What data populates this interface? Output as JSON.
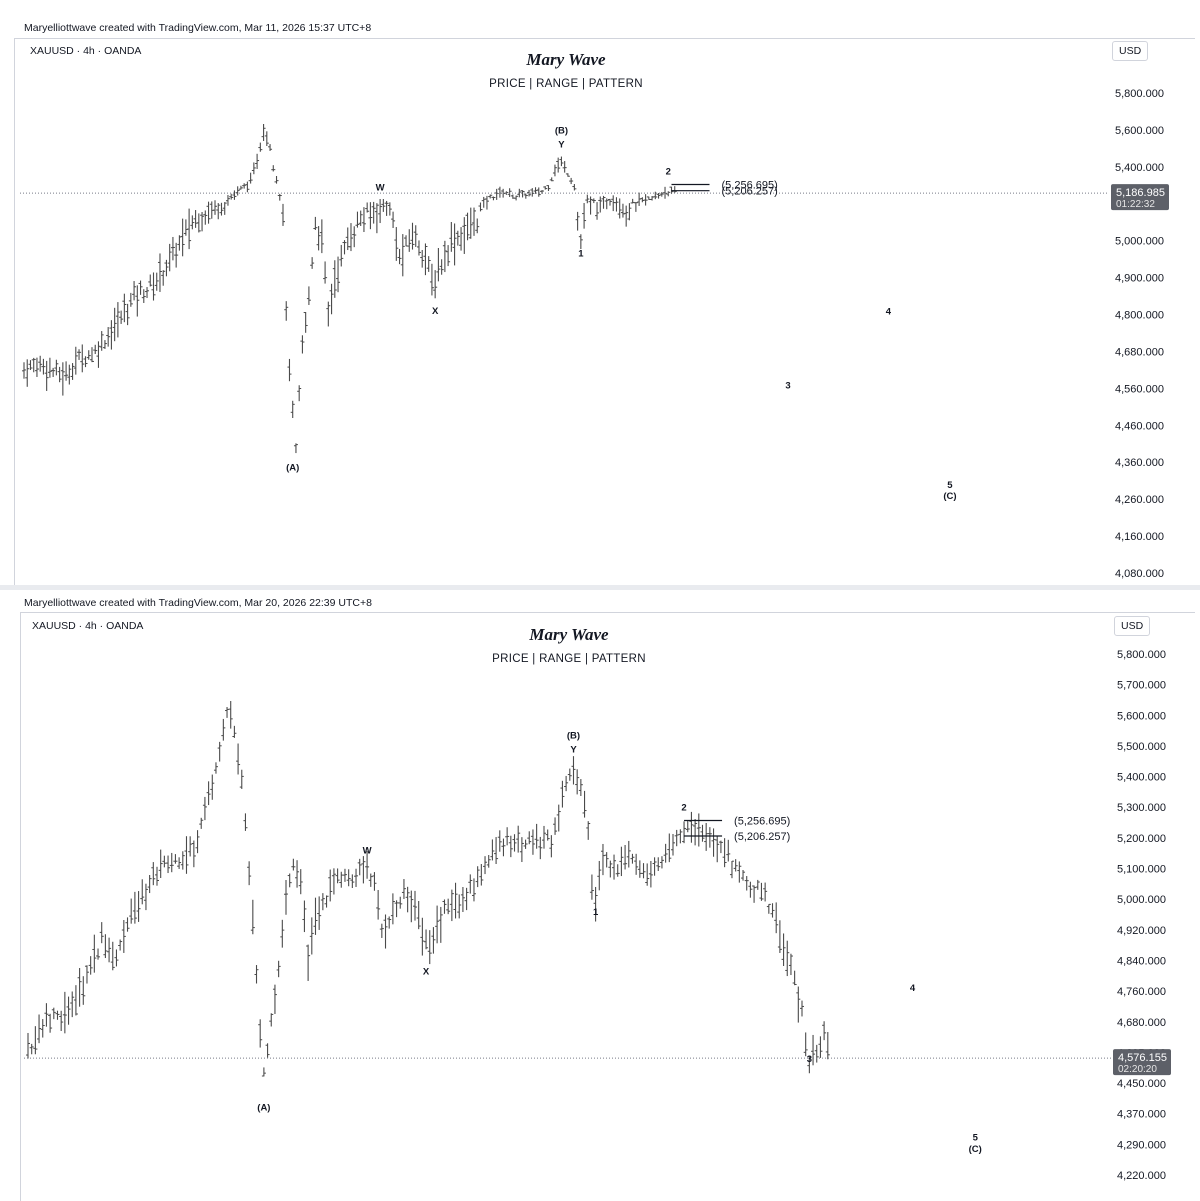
{
  "chart_data": [
    {
      "type": "ohlc",
      "attribution": "Maryelliottwave created with TradingView.com, Mar 11, 2026 15:37 UTC+8",
      "symbol": "XAUUSD · 4h · OANDA",
      "title": "Mary Wave",
      "subtitle": "PRICE  |  RANGE  |  PATTERN",
      "currency": "USD",
      "y_axis_ticks": [
        "5,800.000",
        "5,600.000",
        "5,400.000",
        "5,100.000",
        "5,000.000",
        "4,900.000",
        "4,800.000",
        "4,680.000",
        "4,560.000",
        "4,460.000",
        "4,360.000",
        "4,260.000",
        "4,160.000",
        "4,080.000"
      ],
      "y_tick_values": [
        5800,
        5600,
        5400,
        5100,
        5000,
        4900,
        4800,
        4680,
        4560,
        4460,
        4360,
        4260,
        4160,
        4080
      ],
      "ylim": [
        4060,
        5860
      ],
      "current_price": {
        "value": 5186.985,
        "label": "5,186.985",
        "countdown": "01:22:32"
      },
      "levels": [
        {
          "value": 5256.695,
          "label": "(5,256.695)"
        },
        {
          "value": 5206.257,
          "label": "(5,206.257)"
        }
      ],
      "price_path": [
        [
          0,
          4620
        ],
        [
          5,
          4640
        ],
        [
          10,
          4610
        ],
        [
          13,
          4600
        ],
        [
          16,
          4650
        ],
        [
          22,
          4680
        ],
        [
          28,
          4760
        ],
        [
          34,
          4850
        ],
        [
          40,
          4880
        ],
        [
          46,
          4960
        ],
        [
          52,
          5050
        ],
        [
          58,
          5090
        ],
        [
          62,
          5110
        ],
        [
          66,
          5200
        ],
        [
          70,
          5280
        ],
        [
          74,
          5600
        ],
        [
          76,
          5520
        ],
        [
          78,
          5300
        ],
        [
          80,
          5050
        ],
        [
          82,
          4600
        ],
        [
          84,
          4380
        ],
        [
          86,
          4700
        ],
        [
          88,
          4850
        ],
        [
          90,
          5050
        ],
        [
          92,
          5000
        ],
        [
          94,
          4800
        ],
        [
          96,
          4900
        ],
        [
          100,
          5000
        ],
        [
          104,
          5060
        ],
        [
          108,
          5080
        ],
        [
          112,
          5110
        ],
        [
          114,
          5050
        ],
        [
          116,
          4950
        ],
        [
          118,
          4980
        ],
        [
          120,
          5020
        ],
        [
          124,
          4960
        ],
        [
          126,
          4880
        ],
        [
          128,
          4920
        ],
        [
          132,
          5000
        ],
        [
          136,
          5020
        ],
        [
          140,
          5060
        ],
        [
          144,
          5150
        ],
        [
          148,
          5200
        ],
        [
          152,
          5160
        ],
        [
          156,
          5180
        ],
        [
          160,
          5200
        ],
        [
          162,
          5250
        ],
        [
          164,
          5380
        ],
        [
          166,
          5420
        ],
        [
          168,
          5350
        ],
        [
          170,
          5250
        ],
        [
          171,
          5050
        ],
        [
          172,
          5000
        ],
        [
          174,
          5120
        ],
        [
          178,
          5100
        ],
        [
          182,
          5150
        ],
        [
          186,
          5080
        ],
        [
          190,
          5120
        ],
        [
          194,
          5140
        ],
        [
          198,
          5200
        ],
        [
          202,
          5187
        ]
      ],
      "x_max": 320,
      "wave_labels": [
        {
          "text": "(A)",
          "x": 83,
          "y": 4370,
          "dy": 12
        },
        {
          "text": "W",
          "x": 110,
          "y": 5110,
          "dy": -12
        },
        {
          "text": "X",
          "x": 127,
          "y": 4840,
          "dy": 14
        },
        {
          "text": "(B)",
          "x": 166,
          "y": 5440,
          "dy": -26
        },
        {
          "text": "Y",
          "x": 166,
          "y": 5440,
          "dy": -12
        },
        {
          "text": "1",
          "x": 172,
          "y": 4990,
          "dy": 12
        },
        {
          "text": "2",
          "x": 199,
          "y": 5256,
          "dy": -10
        },
        {
          "text": "3",
          "x": 236,
          "y": 4560,
          "dy": 0
        },
        {
          "text": "4",
          "x": 267,
          "y": 4800,
          "dy": 0
        },
        {
          "text": "5",
          "x": 286,
          "y": 4290,
          "dy": 0
        },
        {
          "text": "(C)",
          "x": 286,
          "y": 4260,
          "dy": 0
        }
      ]
    },
    {
      "type": "ohlc",
      "attribution": "Maryelliottwave created with TradingView.com, Mar 20, 2026 22:39 UTC+8",
      "symbol": "XAUUSD · 4h · OANDA",
      "title": "Mary Wave",
      "subtitle": "PRICE  |  RANGE  |  PATTERN",
      "currency": "USD",
      "y_axis_ticks": [
        "5,800.000",
        "5,700.000",
        "5,600.000",
        "5,500.000",
        "5,400.000",
        "5,300.000",
        "5,200.000",
        "5,100.000",
        "5,000.000",
        "4,920.000",
        "4,840.000",
        "4,760.000",
        "4,680.000",
        "4,605.000",
        "4,450.000",
        "4,370.000",
        "4,290.000",
        "4,220.000"
      ],
      "y_tick_values": [
        5800,
        5700,
        5600,
        5500,
        5400,
        5300,
        5200,
        5100,
        5000,
        4920,
        4840,
        4760,
        4680,
        4605,
        4450,
        4370,
        4290,
        4220
      ],
      "ylim": [
        4190,
        5860
      ],
      "current_price": {
        "value": 4576.155,
        "label": "4,576.155",
        "countdown": "02:20:20"
      },
      "levels": [
        {
          "value": 5256.695,
          "label": "(5,256.695)"
        },
        {
          "value": 5206.257,
          "label": "(5,206.257)"
        }
      ],
      "price_path": [
        [
          0,
          4600
        ],
        [
          4,
          4680
        ],
        [
          8,
          4690
        ],
        [
          12,
          4720
        ],
        [
          16,
          4800
        ],
        [
          20,
          4900
        ],
        [
          24,
          4850
        ],
        [
          28,
          4950
        ],
        [
          32,
          5020
        ],
        [
          36,
          5100
        ],
        [
          40,
          5120
        ],
        [
          44,
          5150
        ],
        [
          46,
          5200
        ],
        [
          50,
          5380
        ],
        [
          54,
          5600
        ],
        [
          56,
          5560
        ],
        [
          58,
          5400
        ],
        [
          60,
          5100
        ],
        [
          62,
          4800
        ],
        [
          64,
          4500
        ],
        [
          66,
          4680
        ],
        [
          68,
          4800
        ],
        [
          70,
          5000
        ],
        [
          72,
          5100
        ],
        [
          74,
          5050
        ],
        [
          76,
          4850
        ],
        [
          78,
          4950
        ],
        [
          80,
          5000
        ],
        [
          84,
          5060
        ],
        [
          88,
          5080
        ],
        [
          92,
          5110
        ],
        [
          94,
          5050
        ],
        [
          96,
          4920
        ],
        [
          98,
          4960
        ],
        [
          102,
          5020
        ],
        [
          106,
          4960
        ],
        [
          108,
          4880
        ],
        [
          110,
          4910
        ],
        [
          114,
          4980
        ],
        [
          118,
          5000
        ],
        [
          122,
          5060
        ],
        [
          126,
          5150
        ],
        [
          130,
          5200
        ],
        [
          134,
          5170
        ],
        [
          138,
          5190
        ],
        [
          142,
          5200
        ],
        [
          144,
          5260
        ],
        [
          146,
          5380
        ],
        [
          148,
          5420
        ],
        [
          150,
          5360
        ],
        [
          152,
          5250
        ],
        [
          153,
          5050
        ],
        [
          154,
          5000
        ],
        [
          156,
          5120
        ],
        [
          160,
          5100
        ],
        [
          164,
          5150
        ],
        [
          168,
          5080
        ],
        [
          172,
          5120
        ],
        [
          176,
          5180
        ],
        [
          180,
          5230
        ],
        [
          184,
          5200
        ],
        [
          188,
          5180
        ],
        [
          192,
          5100
        ],
        [
          196,
          5050
        ],
        [
          200,
          5020
        ],
        [
          204,
          4900
        ],
        [
          208,
          4800
        ],
        [
          210,
          4700
        ],
        [
          212,
          4560
        ],
        [
          214,
          4600
        ],
        [
          216,
          4650
        ],
        [
          218,
          4580
        ]
      ],
      "x_max": 280,
      "wave_labels": [
        {
          "text": "(A)",
          "x": 64,
          "y": 4410,
          "dy": 12
        },
        {
          "text": "W",
          "x": 92,
          "y": 5110,
          "dy": -12
        },
        {
          "text": "X",
          "x": 108,
          "y": 4840,
          "dy": 14
        },
        {
          "text": "(B)",
          "x": 148,
          "y": 5440,
          "dy": -26
        },
        {
          "text": "Y",
          "x": 148,
          "y": 5440,
          "dy": -12
        },
        {
          "text": "1",
          "x": 154,
          "y": 4990,
          "dy": 12
        },
        {
          "text": "2",
          "x": 178,
          "y": 5256,
          "dy": -10
        },
        {
          "text": "3",
          "x": 212,
          "y": 4576,
          "dy": 4
        },
        {
          "text": "4",
          "x": 240,
          "y": 4760,
          "dy": 0
        },
        {
          "text": "5",
          "x": 257,
          "y": 4300,
          "dy": 0
        },
        {
          "text": "(C)",
          "x": 257,
          "y": 4272,
          "dy": 0
        }
      ]
    }
  ]
}
